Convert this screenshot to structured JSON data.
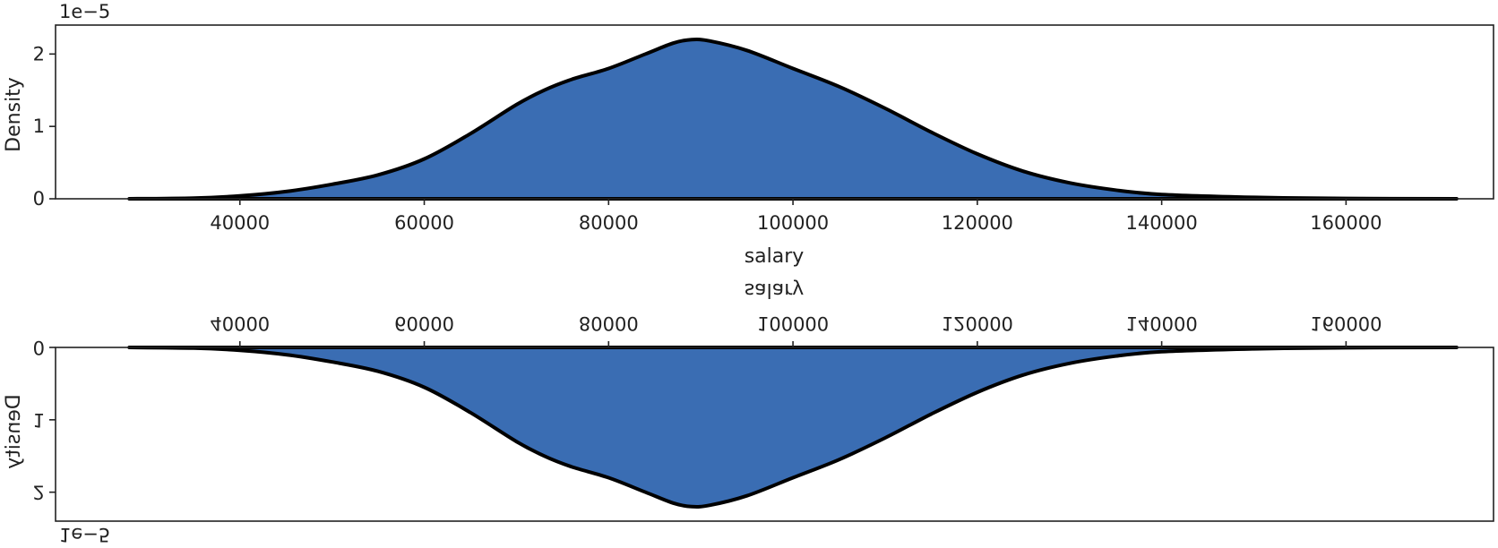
{
  "chart_data": [
    {
      "type": "area",
      "title": "",
      "xlabel": "salary",
      "ylabel": "Density",
      "y_offset_label": "1e−5",
      "orientation": "normal",
      "xlim": [
        20000,
        176000
      ],
      "ylim": [
        0,
        2.4
      ],
      "x_ticks": [
        40000,
        60000,
        80000,
        100000,
        120000,
        140000,
        160000
      ],
      "y_ticks": [
        0,
        1,
        2
      ],
      "grid": false,
      "series": [
        {
          "x": [
            28000,
            35000,
            40000,
            45000,
            50000,
            55000,
            60000,
            65000,
            70000,
            73000,
            76000,
            80000,
            84000,
            87000,
            89000,
            91000,
            95000,
            100000,
            105000,
            110000,
            115000,
            120000,
            125000,
            130000,
            135000,
            140000,
            150000,
            160000,
            172000
          ],
          "y": [
            0.0,
            0.01,
            0.04,
            0.1,
            0.2,
            0.33,
            0.55,
            0.9,
            1.3,
            1.5,
            1.65,
            1.8,
            2.0,
            2.15,
            2.2,
            2.18,
            2.05,
            1.8,
            1.55,
            1.25,
            0.92,
            0.62,
            0.38,
            0.22,
            0.12,
            0.06,
            0.02,
            0.005,
            0.0
          ],
          "color": "#3a6db3"
        }
      ]
    },
    {
      "type": "area",
      "title": "",
      "xlabel": "salary",
      "ylabel": "Density",
      "y_offset_label": "1e−5",
      "orientation": "mirrored",
      "xlim": [
        20000,
        176000
      ],
      "ylim": [
        0,
        2.4
      ],
      "x_ticks": [
        40000,
        60000,
        80000,
        100000,
        120000,
        140000,
        160000
      ],
      "y_ticks": [
        0,
        1,
        2
      ],
      "grid": false,
      "series": [
        {
          "x": [
            28000,
            35000,
            40000,
            45000,
            50000,
            55000,
            60000,
            65000,
            70000,
            73000,
            76000,
            80000,
            84000,
            87000,
            89000,
            91000,
            95000,
            100000,
            105000,
            110000,
            115000,
            120000,
            125000,
            130000,
            135000,
            140000,
            150000,
            160000,
            172000
          ],
          "y": [
            0.0,
            0.01,
            0.04,
            0.1,
            0.2,
            0.33,
            0.55,
            0.9,
            1.3,
            1.5,
            1.65,
            1.8,
            2.0,
            2.15,
            2.2,
            2.18,
            2.05,
            1.8,
            1.55,
            1.25,
            0.92,
            0.62,
            0.38,
            0.22,
            0.12,
            0.06,
            0.02,
            0.005,
            0.0
          ],
          "color": "#3a6db3"
        }
      ]
    }
  ]
}
